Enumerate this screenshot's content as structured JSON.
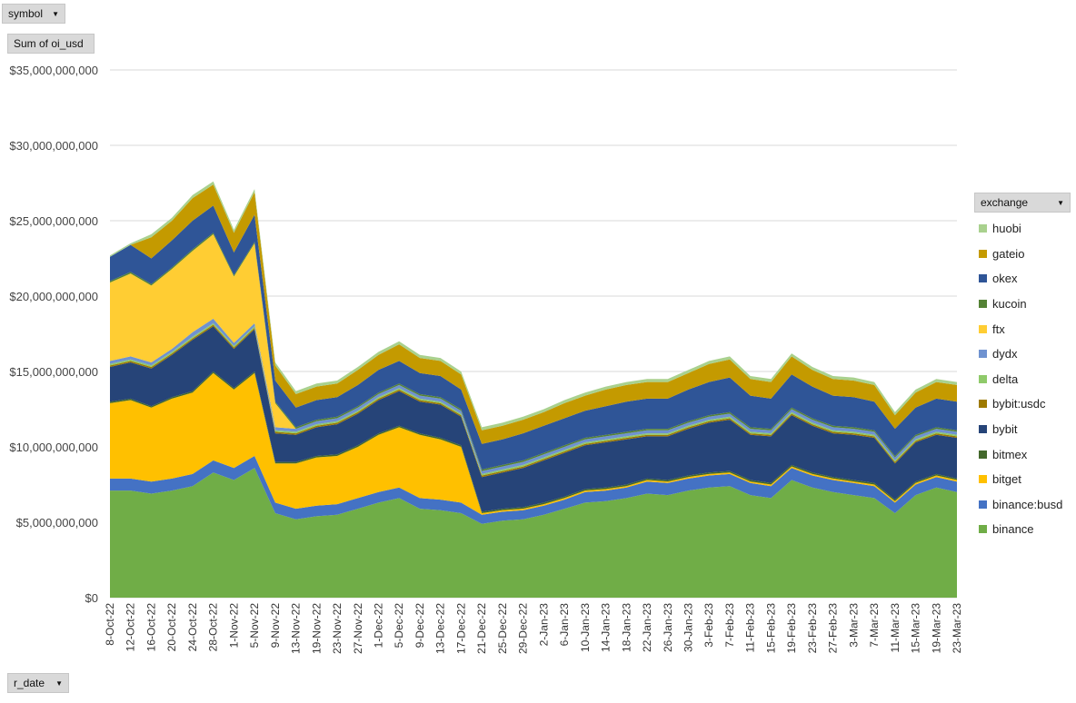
{
  "filters": {
    "symbol_label": "symbol",
    "measure_label": "Sum of oi_usd",
    "row_field_label": "r_date",
    "legend_field_label": "exchange"
  },
  "chart_data": {
    "type": "area",
    "stacked": true,
    "title": "",
    "xlabel": "",
    "ylabel": "",
    "ylim": [
      0,
      35000000000
    ],
    "y_ticks": [
      0,
      5000000000,
      10000000000,
      15000000000,
      20000000000,
      25000000000,
      30000000000,
      35000000000
    ],
    "y_tick_labels": [
      "$0",
      "$5,000,000,000",
      "$10,000,000,000",
      "$15,000,000,000",
      "$20,000,000,000",
      "$25,000,000,000",
      "$30,000,000,000",
      "$35,000,000,000"
    ],
    "x_tick_labels": [
      "8-Oct-22",
      "12-Oct-22",
      "16-Oct-22",
      "20-Oct-22",
      "24-Oct-22",
      "28-Oct-22",
      "1-Nov-22",
      "5-Nov-22",
      "9-Nov-22",
      "13-Nov-22",
      "19-Nov-22",
      "23-Nov-22",
      "27-Nov-22",
      "1-Dec-22",
      "5-Dec-22",
      "9-Dec-22",
      "13-Dec-22",
      "17-Dec-22",
      "21-Dec-22",
      "25-Dec-22",
      "29-Dec-22",
      "2-Jan-23",
      "6-Jan-23",
      "10-Jan-23",
      "14-Jan-23",
      "18-Jan-23",
      "22-Jan-23",
      "26-Jan-23",
      "30-Jan-23",
      "3-Feb-23",
      "7-Feb-23",
      "11-Feb-23",
      "15-Feb-23",
      "19-Feb-23",
      "23-Feb-23",
      "27-Feb-23",
      "3-Mar-23",
      "7-Mar-23",
      "11-Mar-23",
      "15-Mar-23",
      "19-Mar-23",
      "23-Mar-23"
    ],
    "x": [
      "8-Oct-22",
      "12-Oct-22",
      "16-Oct-22",
      "20-Oct-22",
      "24-Oct-22",
      "28-Oct-22",
      "1-Nov-22",
      "5-Nov-22",
      "9-Nov-22",
      "13-Nov-22",
      "19-Nov-22",
      "23-Nov-22",
      "27-Nov-22",
      "1-Dec-22",
      "5-Dec-22",
      "9-Dec-22",
      "13-Dec-22",
      "17-Dec-22",
      "21-Dec-22",
      "25-Dec-22",
      "29-Dec-22",
      "2-Jan-23",
      "6-Jan-23",
      "10-Jan-23",
      "14-Jan-23",
      "18-Jan-23",
      "22-Jan-23",
      "26-Jan-23",
      "30-Jan-23",
      "3-Feb-23",
      "7-Feb-23",
      "11-Feb-23",
      "15-Feb-23",
      "19-Feb-23",
      "23-Feb-23",
      "27-Feb-23",
      "3-Mar-23",
      "7-Mar-23",
      "11-Mar-23",
      "15-Mar-23",
      "19-Mar-23",
      "23-Mar-23"
    ],
    "series": [
      {
        "name": "binance",
        "color": "#70ad47",
        "values": [
          7.1,
          7.1,
          6.9,
          7.1,
          7.4,
          8.3,
          7.8,
          8.6,
          5.6,
          5.2,
          5.4,
          5.5,
          5.9,
          6.3,
          6.6,
          5.9,
          5.8,
          5.6,
          4.9,
          5.1,
          5.2,
          5.5,
          5.9,
          6.3,
          6.4,
          6.6,
          6.9,
          6.8,
          7.1,
          7.3,
          7.4,
          6.8,
          6.6,
          7.8,
          7.3,
          7.0,
          6.8,
          6.6,
          5.6,
          6.8,
          7.3,
          7.0
        ]
      },
      {
        "name": "binance:busd",
        "color": "#4472c4",
        "values": [
          0.8,
          0.8,
          0.8,
          0.8,
          0.8,
          0.8,
          0.8,
          0.8,
          0.7,
          0.7,
          0.7,
          0.7,
          0.7,
          0.7,
          0.7,
          0.7,
          0.7,
          0.7,
          0.6,
          0.6,
          0.6,
          0.6,
          0.6,
          0.7,
          0.7,
          0.7,
          0.8,
          0.8,
          0.8,
          0.8,
          0.8,
          0.8,
          0.8,
          0.8,
          0.8,
          0.8,
          0.8,
          0.8,
          0.7,
          0.7,
          0.7,
          0.7
        ]
      },
      {
        "name": "bitget",
        "color": "#ffc000",
        "values": [
          5.0,
          5.2,
          4.9,
          5.3,
          5.4,
          5.8,
          5.2,
          5.5,
          2.6,
          3.0,
          3.2,
          3.2,
          3.4,
          3.8,
          4.0,
          4.2,
          4.0,
          3.7,
          0.1,
          0.1,
          0.1,
          0.1,
          0.1,
          0.1,
          0.1,
          0.1,
          0.1,
          0.1,
          0.1,
          0.1,
          0.1,
          0.1,
          0.1,
          0.1,
          0.1,
          0.1,
          0.1,
          0.1,
          0.1,
          0.1,
          0.1,
          0.1
        ]
      },
      {
        "name": "bitmex",
        "color": "#43682b",
        "values": [
          0.1,
          0.1,
          0.1,
          0.1,
          0.1,
          0.1,
          0.1,
          0.1,
          0.1,
          0.1,
          0.1,
          0.1,
          0.1,
          0.1,
          0.1,
          0.1,
          0.1,
          0.1,
          0.1,
          0.1,
          0.1,
          0.1,
          0.1,
          0.1,
          0.1,
          0.1,
          0.1,
          0.1,
          0.1,
          0.1,
          0.1,
          0.1,
          0.1,
          0.1,
          0.1,
          0.1,
          0.1,
          0.1,
          0.1,
          0.1,
          0.1,
          0.1
        ]
      },
      {
        "name": "bybit",
        "color": "#264478",
        "values": [
          2.3,
          2.4,
          2.5,
          2.8,
          3.4,
          3.0,
          2.6,
          2.8,
          1.9,
          1.8,
          1.9,
          2.0,
          2.1,
          2.2,
          2.3,
          2.1,
          2.2,
          1.9,
          2.3,
          2.4,
          2.6,
          2.8,
          2.9,
          2.9,
          3.0,
          3.0,
          2.8,
          2.9,
          3.1,
          3.3,
          3.4,
          3.0,
          3.1,
          3.3,
          3.1,
          2.9,
          3.0,
          3.0,
          2.4,
          2.6,
          2.6,
          2.7
        ]
      },
      {
        "name": "bybit:usdc",
        "color": "#9e7a00",
        "values": [
          0.1,
          0.1,
          0.1,
          0.1,
          0.1,
          0.1,
          0.1,
          0.1,
          0.1,
          0.1,
          0.1,
          0.1,
          0.1,
          0.1,
          0.1,
          0.1,
          0.1,
          0.1,
          0.1,
          0.1,
          0.1,
          0.1,
          0.1,
          0.1,
          0.1,
          0.1,
          0.1,
          0.1,
          0.1,
          0.1,
          0.1,
          0.1,
          0.1,
          0.1,
          0.1,
          0.1,
          0.1,
          0.1,
          0.1,
          0.1,
          0.1,
          0.1
        ]
      },
      {
        "name": "delta",
        "color": "#8fca6a",
        "values": [
          0.1,
          0.1,
          0.1,
          0.1,
          0.1,
          0.1,
          0.1,
          0.1,
          0.1,
          0.1,
          0.1,
          0.1,
          0.1,
          0.1,
          0.1,
          0.1,
          0.1,
          0.1,
          0.1,
          0.1,
          0.1,
          0.1,
          0.1,
          0.1,
          0.1,
          0.1,
          0.1,
          0.1,
          0.1,
          0.1,
          0.1,
          0.1,
          0.1,
          0.1,
          0.1,
          0.1,
          0.1,
          0.1,
          0.1,
          0.1,
          0.1,
          0.1
        ]
      },
      {
        "name": "dydx",
        "color": "#6f92d0",
        "values": [
          0.2,
          0.2,
          0.2,
          0.2,
          0.3,
          0.3,
          0.2,
          0.2,
          0.2,
          0.2,
          0.2,
          0.2,
          0.2,
          0.2,
          0.2,
          0.2,
          0.2,
          0.2,
          0.2,
          0.2,
          0.2,
          0.2,
          0.2,
          0.2,
          0.2,
          0.2,
          0.2,
          0.2,
          0.2,
          0.2,
          0.2,
          0.2,
          0.2,
          0.2,
          0.2,
          0.2,
          0.2,
          0.2,
          0.2,
          0.2,
          0.2,
          0.2
        ]
      },
      {
        "name": "ftx",
        "color": "#ffcd33",
        "values": [
          5.2,
          5.5,
          5.1,
          5.3,
          5.4,
          5.6,
          4.4,
          5.3,
          1.6,
          0.0,
          0.0,
          0.0,
          0.0,
          0.0,
          0.0,
          0.0,
          0.0,
          0.0,
          0.0,
          0.0,
          0.0,
          0.0,
          0.0,
          0.0,
          0.0,
          0.0,
          0.0,
          0.0,
          0.0,
          0.0,
          0.0,
          0.0,
          0.0,
          0.0,
          0.0,
          0.0,
          0.0,
          0.0,
          0.0,
          0.0,
          0.0,
          0.0
        ]
      },
      {
        "name": "kucoin",
        "color": "#548235",
        "values": [
          0.1,
          0.1,
          0.1,
          0.1,
          0.1,
          0.1,
          0.1,
          0.1,
          0.1,
          0.1,
          0.1,
          0.1,
          0.1,
          0.1,
          0.1,
          0.1,
          0.1,
          0.1,
          0.1,
          0.1,
          0.1,
          0.1,
          0.1,
          0.1,
          0.1,
          0.1,
          0.1,
          0.1,
          0.1,
          0.1,
          0.1,
          0.1,
          0.1,
          0.1,
          0.1,
          0.1,
          0.1,
          0.1,
          0.1,
          0.1,
          0.1,
          0.1
        ]
      },
      {
        "name": "okex",
        "color": "#2f5597",
        "values": [
          1.6,
          1.8,
          1.7,
          1.8,
          1.9,
          1.8,
          1.5,
          1.8,
          1.4,
          1.3,
          1.3,
          1.3,
          1.4,
          1.5,
          1.5,
          1.4,
          1.4,
          1.3,
          1.7,
          1.7,
          1.8,
          1.8,
          1.8,
          1.8,
          1.9,
          2.0,
          2.0,
          2.0,
          2.1,
          2.2,
          2.3,
          2.1,
          2.0,
          2.2,
          2.1,
          2.0,
          2.0,
          1.9,
          1.8,
          1.8,
          1.9,
          1.9
        ]
      },
      {
        "name": "gateio",
        "color": "#c49a00",
        "values": [
          0.0,
          0.0,
          1.4,
          1.3,
          1.5,
          1.4,
          1.3,
          1.5,
          1.0,
          0.9,
          0.9,
          0.9,
          1.0,
          1.0,
          1.1,
          1.0,
          1.0,
          1.0,
          0.9,
          0.9,
          0.9,
          0.9,
          1.0,
          1.0,
          1.1,
          1.1,
          1.1,
          1.1,
          1.1,
          1.2,
          1.2,
          1.1,
          1.1,
          1.2,
          1.1,
          1.1,
          1.1,
          1.1,
          0.9,
          1.0,
          1.1,
          1.1
        ]
      },
      {
        "name": "huobi",
        "color": "#a9d18e",
        "values": [
          0.1,
          0.1,
          0.2,
          0.2,
          0.2,
          0.2,
          0.2,
          0.2,
          0.2,
          0.2,
          0.2,
          0.2,
          0.2,
          0.2,
          0.2,
          0.2,
          0.2,
          0.2,
          0.2,
          0.2,
          0.2,
          0.2,
          0.2,
          0.2,
          0.2,
          0.2,
          0.2,
          0.2,
          0.2,
          0.2,
          0.2,
          0.2,
          0.2,
          0.2,
          0.2,
          0.2,
          0.2,
          0.2,
          0.2,
          0.2,
          0.2,
          0.2
        ]
      }
    ],
    "value_unit_multiplier": 1000000000,
    "legend_position": "right",
    "legend_order": [
      "huobi",
      "gateio",
      "okex",
      "kucoin",
      "ftx",
      "dydx",
      "delta",
      "bybit:usdc",
      "bybit",
      "bitmex",
      "bitget",
      "binance:busd",
      "binance"
    ],
    "grid": true
  }
}
